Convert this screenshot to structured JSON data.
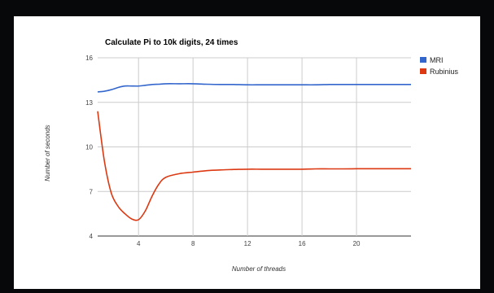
{
  "chart_data": {
    "type": "line",
    "title": "Calculate Pi to 10k digits, 24 times",
    "xlabel": "Number of threads",
    "ylabel": "Number of seconds",
    "xlim": [
      1,
      24
    ],
    "ylim": [
      4,
      16
    ],
    "x_ticks": [
      4,
      8,
      12,
      16,
      20
    ],
    "y_ticks": [
      4,
      7,
      10,
      13,
      16
    ],
    "grid": true,
    "legend_position": "right",
    "x": [
      1,
      1.5,
      2,
      2.5,
      3,
      3.5,
      4,
      4.5,
      5,
      5.5,
      6,
      7,
      8,
      9,
      10,
      11,
      12,
      13,
      14,
      15,
      16,
      17,
      18,
      19,
      20,
      21,
      22,
      23,
      24
    ],
    "series": [
      {
        "name": "MRI",
        "color": "#3366cc",
        "values": [
          13.7,
          13.75,
          13.85,
          14.0,
          14.1,
          14.1,
          14.1,
          14.15,
          14.2,
          14.22,
          14.25,
          14.25,
          14.25,
          14.22,
          14.2,
          14.2,
          14.18,
          14.18,
          14.18,
          14.18,
          14.18,
          14.18,
          14.2,
          14.2,
          14.2,
          14.2,
          14.2,
          14.2,
          14.2
        ]
      },
      {
        "name": "Rubinius",
        "color": "#dc3912",
        "values": [
          12.4,
          9.0,
          6.9,
          6.0,
          5.5,
          5.15,
          5.1,
          5.7,
          6.7,
          7.5,
          7.95,
          8.2,
          8.3,
          8.4,
          8.45,
          8.48,
          8.5,
          8.5,
          8.5,
          8.5,
          8.5,
          8.52,
          8.52,
          8.52,
          8.53,
          8.53,
          8.53,
          8.53,
          8.53
        ]
      }
    ]
  }
}
